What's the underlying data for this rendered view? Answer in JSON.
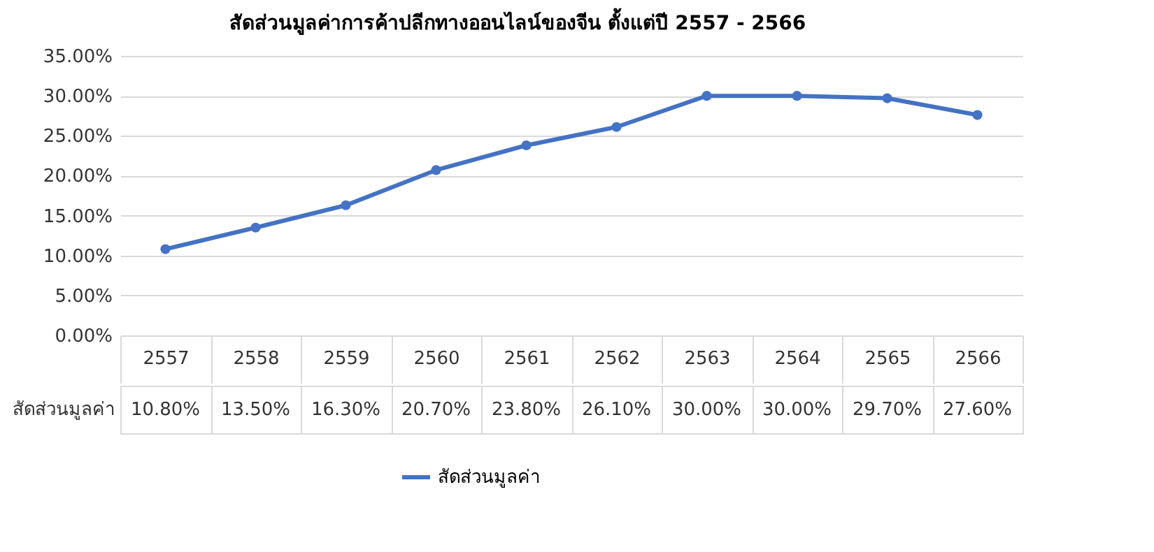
{
  "chart_data": {
    "type": "line",
    "title": "สัดส่วนมูลค่าการค้าปลีกทางออนไลน์ของจีน ตั้งแต่ปี 2557 - 2566",
    "categories": [
      "2557",
      "2558",
      "2559",
      "2560",
      "2561",
      "2562",
      "2563",
      "2564",
      "2565",
      "2566"
    ],
    "series": [
      {
        "name": "สัดส่วนมูลค่า",
        "color": "#4472c4",
        "values": [
          10.8,
          13.5,
          16.3,
          20.7,
          23.8,
          26.1,
          30.0,
          30.0,
          29.7,
          27.6
        ],
        "value_labels": [
          "10.80%",
          "13.50%",
          "16.30%",
          "20.70%",
          "23.80%",
          "26.10%",
          "30.00%",
          "30.00%",
          "29.70%",
          "27.60%"
        ]
      }
    ],
    "ylim": [
      0,
      35
    ],
    "yticks": [
      {
        "value": 0,
        "label": "0.00%"
      },
      {
        "value": 5,
        "label": "5.00%"
      },
      {
        "value": 10,
        "label": "10.00%"
      },
      {
        "value": 15,
        "label": "15.00%"
      },
      {
        "value": 20,
        "label": "20.00%"
      },
      {
        "value": 25,
        "label": "25.00%"
      },
      {
        "value": 30,
        "label": "30.00%"
      },
      {
        "value": 35,
        "label": "35.00%"
      }
    ],
    "grid": "y",
    "legend": "bottom",
    "marker": "circle",
    "line_style": "solid"
  }
}
